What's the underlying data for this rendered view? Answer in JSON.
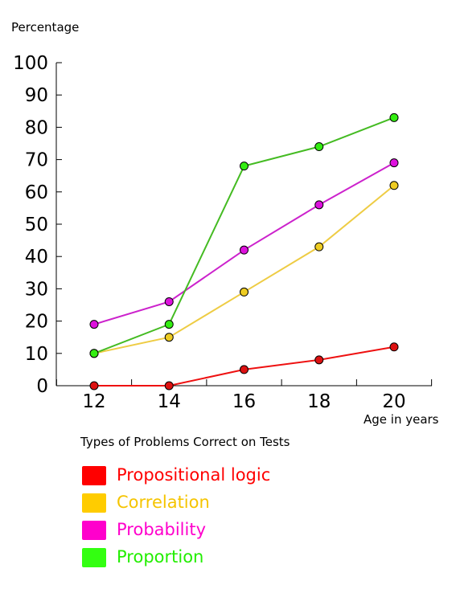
{
  "chart_data": {
    "type": "line",
    "ylabel": "Percentage",
    "xlabel": "Age in years",
    "legend_title": "Types of Problems Correct on Tests",
    "legend_position": "bottom-left",
    "grid": false,
    "x": [
      12,
      14,
      16,
      18,
      20
    ],
    "xticklabels": [
      "12",
      "14",
      "16",
      "18",
      "20"
    ],
    "ylim": [
      0,
      100
    ],
    "yticks": [
      0,
      10,
      20,
      30,
      40,
      50,
      60,
      70,
      80,
      90,
      100
    ],
    "yticklabels": [
      "0",
      "10",
      "20",
      "30",
      "40",
      "50",
      "60",
      "70",
      "80",
      "90",
      "100"
    ],
    "series": [
      {
        "name": "Propositional logic",
        "color": "#ee1111",
        "marker_color": "#dd1111",
        "values": [
          0,
          0,
          5,
          8,
          12
        ]
      },
      {
        "name": "Correlation",
        "color": "#eecc44",
        "marker_color": "#eecc22",
        "values": [
          10,
          15,
          29,
          43,
          62
        ]
      },
      {
        "name": "Probability",
        "color": "#cc22cc",
        "marker_color": "#dd11dd",
        "values": [
          19,
          26,
          42,
          56,
          69
        ]
      },
      {
        "name": "Proportion",
        "color": "#44bb22",
        "marker_color": "#33ee11",
        "values": [
          10,
          19,
          68,
          74,
          83
        ]
      }
    ],
    "legend_colors": [
      "#ff0000",
      "#ffcc00",
      "#ff00cc",
      "#33ff11"
    ],
    "legend_text_colors": [
      "#ff0000",
      "#f5c400",
      "#ff00cc",
      "#22ee00"
    ]
  }
}
